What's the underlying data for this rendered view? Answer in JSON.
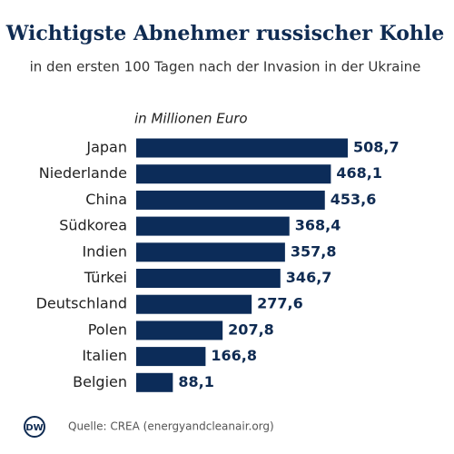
{
  "chart_data": {
    "type": "bar",
    "orientation": "horizontal",
    "title": "Wichtigste Abnehmer russischer Kohle",
    "subtitle": "in den ersten 100 Tagen nach der Invasion in der Ukraine",
    "axis_label": "in Millionen Euro",
    "categories": [
      "Japan",
      "Niederlande",
      "China",
      "Südkorea",
      "Indien",
      "Türkei",
      "Deutschland",
      "Polen",
      "Italien",
      "Belgien"
    ],
    "values": [
      508.7,
      468.1,
      453.6,
      368.4,
      357.8,
      346.7,
      277.6,
      207.8,
      166.8,
      88.1
    ],
    "value_labels": [
      "508,7",
      "468,1",
      "453,6",
      "368,4",
      "357,8",
      "346,7",
      "277,6",
      "207,8",
      "166,8",
      "88,1"
    ],
    "color": "#0c2c59",
    "source": "Quelle: CREA (energyandcleanair.org)",
    "logo": "DW"
  }
}
